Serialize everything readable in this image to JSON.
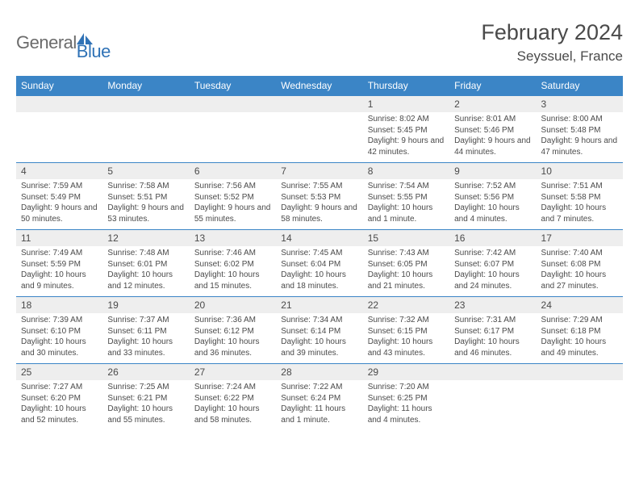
{
  "logo": {
    "text1": "General",
    "text2": "Blue",
    "color1": "#6b6b6b",
    "color2": "#2f72b6"
  },
  "title": "February 2024",
  "location": "Seyssuel, France",
  "colors": {
    "header_bar": "#3b85c6",
    "daynum_bg": "#eeeeee",
    "week_border": "#3b85c6",
    "text": "#4a4a4a",
    "white": "#ffffff"
  },
  "day_headers": [
    "Sunday",
    "Monday",
    "Tuesday",
    "Wednesday",
    "Thursday",
    "Friday",
    "Saturday"
  ],
  "weeks": [
    [
      null,
      null,
      null,
      null,
      {
        "n": "1",
        "sunrise": "8:02 AM",
        "sunset": "5:45 PM",
        "daylight": "9 hours and 42 minutes."
      },
      {
        "n": "2",
        "sunrise": "8:01 AM",
        "sunset": "5:46 PM",
        "daylight": "9 hours and 44 minutes."
      },
      {
        "n": "3",
        "sunrise": "8:00 AM",
        "sunset": "5:48 PM",
        "daylight": "9 hours and 47 minutes."
      }
    ],
    [
      {
        "n": "4",
        "sunrise": "7:59 AM",
        "sunset": "5:49 PM",
        "daylight": "9 hours and 50 minutes."
      },
      {
        "n": "5",
        "sunrise": "7:58 AM",
        "sunset": "5:51 PM",
        "daylight": "9 hours and 53 minutes."
      },
      {
        "n": "6",
        "sunrise": "7:56 AM",
        "sunset": "5:52 PM",
        "daylight": "9 hours and 55 minutes."
      },
      {
        "n": "7",
        "sunrise": "7:55 AM",
        "sunset": "5:53 PM",
        "daylight": "9 hours and 58 minutes."
      },
      {
        "n": "8",
        "sunrise": "7:54 AM",
        "sunset": "5:55 PM",
        "daylight": "10 hours and 1 minute."
      },
      {
        "n": "9",
        "sunrise": "7:52 AM",
        "sunset": "5:56 PM",
        "daylight": "10 hours and 4 minutes."
      },
      {
        "n": "10",
        "sunrise": "7:51 AM",
        "sunset": "5:58 PM",
        "daylight": "10 hours and 7 minutes."
      }
    ],
    [
      {
        "n": "11",
        "sunrise": "7:49 AM",
        "sunset": "5:59 PM",
        "daylight": "10 hours and 9 minutes."
      },
      {
        "n": "12",
        "sunrise": "7:48 AM",
        "sunset": "6:01 PM",
        "daylight": "10 hours and 12 minutes."
      },
      {
        "n": "13",
        "sunrise": "7:46 AM",
        "sunset": "6:02 PM",
        "daylight": "10 hours and 15 minutes."
      },
      {
        "n": "14",
        "sunrise": "7:45 AM",
        "sunset": "6:04 PM",
        "daylight": "10 hours and 18 minutes."
      },
      {
        "n": "15",
        "sunrise": "7:43 AM",
        "sunset": "6:05 PM",
        "daylight": "10 hours and 21 minutes."
      },
      {
        "n": "16",
        "sunrise": "7:42 AM",
        "sunset": "6:07 PM",
        "daylight": "10 hours and 24 minutes."
      },
      {
        "n": "17",
        "sunrise": "7:40 AM",
        "sunset": "6:08 PM",
        "daylight": "10 hours and 27 minutes."
      }
    ],
    [
      {
        "n": "18",
        "sunrise": "7:39 AM",
        "sunset": "6:10 PM",
        "daylight": "10 hours and 30 minutes."
      },
      {
        "n": "19",
        "sunrise": "7:37 AM",
        "sunset": "6:11 PM",
        "daylight": "10 hours and 33 minutes."
      },
      {
        "n": "20",
        "sunrise": "7:36 AM",
        "sunset": "6:12 PM",
        "daylight": "10 hours and 36 minutes."
      },
      {
        "n": "21",
        "sunrise": "7:34 AM",
        "sunset": "6:14 PM",
        "daylight": "10 hours and 39 minutes."
      },
      {
        "n": "22",
        "sunrise": "7:32 AM",
        "sunset": "6:15 PM",
        "daylight": "10 hours and 43 minutes."
      },
      {
        "n": "23",
        "sunrise": "7:31 AM",
        "sunset": "6:17 PM",
        "daylight": "10 hours and 46 minutes."
      },
      {
        "n": "24",
        "sunrise": "7:29 AM",
        "sunset": "6:18 PM",
        "daylight": "10 hours and 49 minutes."
      }
    ],
    [
      {
        "n": "25",
        "sunrise": "7:27 AM",
        "sunset": "6:20 PM",
        "daylight": "10 hours and 52 minutes."
      },
      {
        "n": "26",
        "sunrise": "7:25 AM",
        "sunset": "6:21 PM",
        "daylight": "10 hours and 55 minutes."
      },
      {
        "n": "27",
        "sunrise": "7:24 AM",
        "sunset": "6:22 PM",
        "daylight": "10 hours and 58 minutes."
      },
      {
        "n": "28",
        "sunrise": "7:22 AM",
        "sunset": "6:24 PM",
        "daylight": "11 hours and 1 minute."
      },
      {
        "n": "29",
        "sunrise": "7:20 AM",
        "sunset": "6:25 PM",
        "daylight": "11 hours and 4 minutes."
      },
      null,
      null
    ]
  ],
  "labels": {
    "sunrise": "Sunrise: ",
    "sunset": "Sunset: ",
    "daylight": "Daylight: "
  }
}
